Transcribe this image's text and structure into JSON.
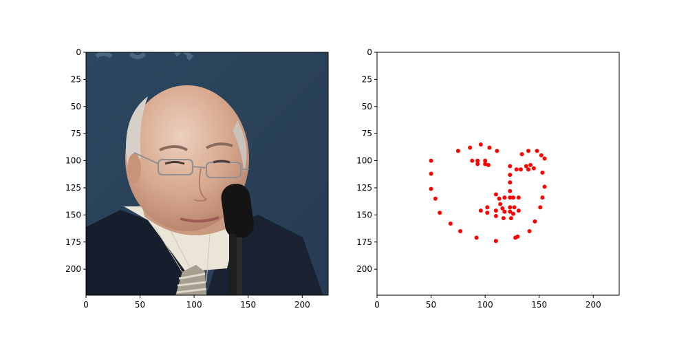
{
  "chart_data": [
    {
      "type": "image",
      "title": "",
      "xlabel": "",
      "ylabel": "",
      "xlim": [
        0,
        224
      ],
      "ylim": [
        224,
        0
      ],
      "y_inverted": true,
      "xticks": [
        0,
        50,
        100,
        150,
        200
      ],
      "yticks": [
        0,
        25,
        50,
        75,
        100,
        125,
        150,
        175,
        200
      ],
      "content": "photograph of a bald man with glasses speaking at a microphone",
      "colors": {
        "background": "#2e4960",
        "skin": "#d9a98e",
        "hair": "#cfc7c0",
        "jacket": "#161d2c",
        "shirt": "#ece6da",
        "microphone": "#151515"
      }
    },
    {
      "type": "scatter",
      "title": "",
      "xlabel": "",
      "ylabel": "",
      "xlim": [
        0,
        224
      ],
      "ylim": [
        224,
        0
      ],
      "y_inverted": true,
      "xticks": [
        0,
        50,
        100,
        150,
        200
      ],
      "yticks": [
        0,
        25,
        50,
        75,
        100,
        125,
        150,
        175,
        200
      ],
      "marker_color": "#ff0000",
      "series": [
        {
          "points": [
            [
              50,
              100
            ],
            [
              50,
              112
            ],
            [
              50,
              126
            ],
            [
              54,
              135
            ],
            [
              58,
              148
            ],
            [
              68,
              158
            ],
            [
              77,
              165
            ],
            [
              92,
              171
            ],
            [
              110,
              174
            ],
            [
              130,
              170
            ],
            [
              141,
              165
            ],
            [
              146,
              156
            ],
            [
              151,
              143
            ],
            [
              153,
              134
            ],
            [
              155,
              124
            ],
            [
              153,
              111
            ],
            [
              155,
              98
            ],
            [
              75,
              91
            ],
            [
              86,
              88
            ],
            [
              96,
              85
            ],
            [
              104,
              88
            ],
            [
              111,
              91
            ],
            [
              134,
              94
            ],
            [
              140,
              91
            ],
            [
              148,
              91
            ],
            [
              152,
              95
            ],
            [
              123,
              105
            ],
            [
              123,
              113
            ],
            [
              123,
              120
            ],
            [
              123,
              128
            ],
            [
              123,
              134
            ],
            [
              110,
              131
            ],
            [
              113,
              135
            ],
            [
              118,
              134
            ],
            [
              126,
              134
            ],
            [
              131,
              134
            ],
            [
              88,
              100
            ],
            [
              93,
              100
            ],
            [
              100,
              100
            ],
            [
              93,
              103
            ],
            [
              100,
              103
            ],
            [
              103,
              104
            ],
            [
              129,
              108
            ],
            [
              133,
              108
            ],
            [
              138,
              105
            ],
            [
              142,
              104
            ],
            [
              140,
              108
            ],
            [
              145,
              107
            ],
            [
              96,
              146
            ],
            [
              102,
              143
            ],
            [
              102,
              148
            ],
            [
              110,
              146
            ],
            [
              114,
              140
            ],
            [
              116,
              144
            ],
            [
              118,
              147
            ],
            [
              123,
              143
            ],
            [
              123,
              147
            ],
            [
              127,
              143
            ],
            [
              131,
              146
            ],
            [
              126,
              149
            ],
            [
              110,
              151
            ],
            [
              117,
              153
            ],
            [
              124,
              153
            ],
            [
              128,
              171
            ]
          ]
        }
      ]
    }
  ]
}
